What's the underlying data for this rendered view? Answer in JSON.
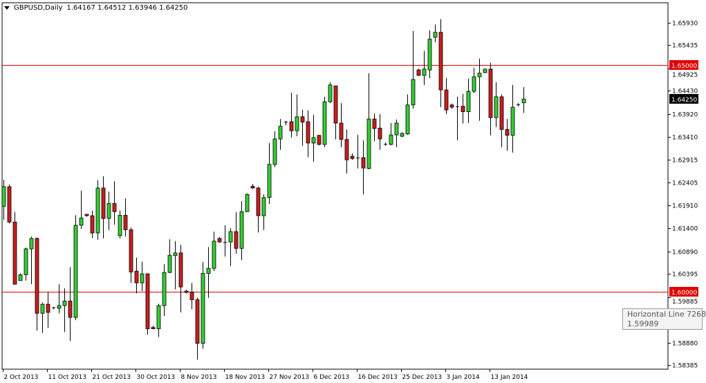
{
  "header": {
    "menu_icon": "triangle-down-icon",
    "symbol": "GBPUSD,Daily",
    "ohlc": "1.64167 1.64512 1.63946 1.64250"
  },
  "tooltip": {
    "title": "Horizontal Line 7268",
    "value": "1.59989"
  },
  "chart_data": {
    "type": "candlestick",
    "title": "GBPUSD,Daily",
    "ylim": [
      1.583,
      1.6637
    ],
    "grid": false,
    "colors": {
      "bull": "#32cd32",
      "bear": "#c81e1e",
      "outline": "#000000",
      "hline": "#e00000",
      "current_price_bg": "#000000"
    },
    "y_ticks": [
      "1.65930",
      "1.65435",
      "1.64925",
      "1.64430",
      "1.63920",
      "1.63410",
      "1.62915",
      "1.62405",
      "1.61910",
      "1.61400",
      "1.60890",
      "1.60395",
      "1.59885",
      "1.58880",
      "1.58385"
    ],
    "x_labels": [
      "2 Oct 2013",
      "11 Oct 2013",
      "21 Oct 2013",
      "30 Oct 2013",
      "8 Nov 2013",
      "18 Nov 2013",
      "27 Nov 2013",
      "6 Dec 2013",
      "16 Dec 2013",
      "25 Dec 2013",
      "3 Jan 2014",
      "13 Jan 2014"
    ],
    "horizontal_lines": [
      {
        "price": 1.65,
        "label": "1.65000"
      },
      {
        "price": 1.6,
        "label": "1.60000"
      }
    ],
    "current_price": {
      "price": 1.6425,
      "label": "1.64250"
    },
    "ohlc_fields": [
      "open",
      "high",
      "low",
      "close"
    ],
    "candles": [
      [
        1.6189,
        1.6247,
        1.6159,
        1.6232
      ],
      [
        1.6232,
        1.6237,
        1.6151,
        1.6154
      ],
      [
        1.6154,
        1.6176,
        1.6017,
        1.6017
      ],
      [
        1.6025,
        1.6041,
        1.6025,
        1.6038
      ],
      [
        1.6038,
        1.6098,
        1.6025,
        1.6095
      ],
      [
        1.6095,
        1.6122,
        1.6017,
        1.6118
      ],
      [
        1.6118,
        1.612,
        1.5915,
        1.5953
      ],
      [
        1.5953,
        1.5977,
        1.591,
        1.5973
      ],
      [
        1.5973,
        1.6,
        1.5921,
        1.5955
      ],
      [
        1.5965,
        1.5967,
        1.5962,
        1.5966
      ],
      [
        1.5964,
        1.6017,
        1.5953,
        1.597
      ],
      [
        1.597,
        1.6008,
        1.5912,
        1.598
      ],
      [
        1.598,
        1.6055,
        1.5892,
        1.5944
      ],
      [
        1.5944,
        1.6169,
        1.5938,
        1.6147
      ],
      [
        1.6147,
        1.6223,
        1.6139,
        1.6163
      ],
      [
        1.6171,
        1.6172,
        1.6166,
        1.6168
      ],
      [
        1.6168,
        1.6179,
        1.6119,
        1.613
      ],
      [
        1.613,
        1.6246,
        1.6115,
        1.6229
      ],
      [
        1.6229,
        1.6255,
        1.6118,
        1.6162
      ],
      [
        1.6162,
        1.6221,
        1.6136,
        1.6195
      ],
      [
        1.6195,
        1.6244,
        1.6148,
        1.6177
      ],
      [
        1.6124,
        1.6179,
        1.6118,
        1.6169
      ],
      [
        1.6169,
        1.6206,
        1.6122,
        1.6137
      ],
      [
        1.6137,
        1.6142,
        1.602,
        1.6044
      ],
      [
        1.6046,
        1.6076,
        1.5997,
        1.602
      ],
      [
        1.602,
        1.6067,
        1.6002,
        1.604
      ],
      [
        1.604,
        1.6041,
        1.5906,
        1.5919
      ],
      [
        1.5922,
        1.5926,
        1.5918,
        1.5919
      ],
      [
        1.5919,
        1.5974,
        1.5901,
        1.597
      ],
      [
        1.597,
        1.6061,
        1.5947,
        1.6043
      ],
      [
        1.6043,
        1.6116,
        1.6041,
        1.6081
      ],
      [
        1.608,
        1.6112,
        1.6006,
        1.6086
      ],
      [
        1.6086,
        1.6104,
        1.5955,
        1.6011
      ],
      [
        1.6002,
        1.6005,
        1.5997,
        1.5999
      ],
      [
        1.6,
        1.602,
        1.5962,
        1.5983
      ],
      [
        1.5983,
        1.5988,
        1.5851,
        1.5887
      ],
      [
        1.5887,
        1.6066,
        1.5875,
        1.6041
      ],
      [
        1.6041,
        1.6099,
        1.5987,
        1.6052
      ],
      [
        1.6052,
        1.6133,
        1.6046,
        1.6112
      ],
      [
        1.6118,
        1.6121,
        1.6109,
        1.611
      ],
      [
        1.611,
        1.6147,
        1.6078,
        1.611
      ],
      [
        1.611,
        1.614,
        1.6057,
        1.6133
      ],
      [
        1.6133,
        1.6176,
        1.6084,
        1.6096
      ],
      [
        1.6096,
        1.62,
        1.607,
        1.6177
      ],
      [
        1.6177,
        1.6217,
        1.6176,
        1.6215
      ],
      [
        1.6233,
        1.6238,
        1.6227,
        1.6229
      ],
      [
        1.6229,
        1.6232,
        1.6131,
        1.6168
      ],
      [
        1.6168,
        1.6215,
        1.6136,
        1.6208
      ],
      [
        1.6208,
        1.6328,
        1.6194,
        1.6281
      ],
      [
        1.6281,
        1.6354,
        1.6275,
        1.6337
      ],
      [
        1.6337,
        1.6381,
        1.6313,
        1.6365
      ],
      [
        1.6375,
        1.6377,
        1.6367,
        1.6374
      ],
      [
        1.6375,
        1.6439,
        1.634,
        1.6355
      ],
      [
        1.6355,
        1.6435,
        1.6343,
        1.6386
      ],
      [
        1.6386,
        1.6401,
        1.6322,
        1.6374
      ],
      [
        1.6375,
        1.64,
        1.6297,
        1.6328
      ],
      [
        1.6328,
        1.639,
        1.6287,
        1.634
      ],
      [
        1.6345,
        1.6346,
        1.6323,
        1.6325
      ],
      [
        1.6325,
        1.643,
        1.6319,
        1.6419
      ],
      [
        1.6419,
        1.6462,
        1.6416,
        1.6456
      ],
      [
        1.6454,
        1.6454,
        1.6336,
        1.6372
      ],
      [
        1.6372,
        1.6416,
        1.6319,
        1.6336
      ],
      [
        1.6336,
        1.6358,
        1.6261,
        1.6291
      ],
      [
        1.6299,
        1.6305,
        1.6291,
        1.6294
      ],
      [
        1.6296,
        1.6346,
        1.6272,
        1.6296
      ],
      [
        1.6296,
        1.6334,
        1.6215,
        1.6273
      ],
      [
        1.6272,
        1.6482,
        1.627,
        1.6381
      ],
      [
        1.6381,
        1.6393,
        1.6332,
        1.636
      ],
      [
        1.6361,
        1.6392,
        1.6313,
        1.6337
      ],
      [
        1.6326,
        1.6329,
        1.6322,
        1.6326
      ],
      [
        1.6325,
        1.6372,
        1.6323,
        1.6346
      ],
      [
        1.6346,
        1.638,
        1.6319,
        1.6372
      ],
      [
        1.6343,
        1.6352,
        1.6341,
        1.6349
      ],
      [
        1.6348,
        1.6435,
        1.6346,
        1.6412
      ],
      [
        1.6412,
        1.6575,
        1.6404,
        1.6468
      ],
      [
        1.6489,
        1.6492,
        1.6476,
        1.6477
      ],
      [
        1.6477,
        1.6531,
        1.6456,
        1.6491
      ],
      [
        1.6489,
        1.6576,
        1.6471,
        1.6557
      ],
      [
        1.6561,
        1.6589,
        1.655,
        1.6572
      ],
      [
        1.6572,
        1.6601,
        1.6407,
        1.6445
      ],
      [
        1.6445,
        1.6471,
        1.6392,
        1.6401
      ],
      [
        1.6412,
        1.6415,
        1.6403,
        1.6407
      ],
      [
        1.6409,
        1.643,
        1.6334,
        1.6409
      ],
      [
        1.6409,
        1.6436,
        1.6371,
        1.6397
      ],
      [
        1.6397,
        1.647,
        1.6372,
        1.6442
      ],
      [
        1.6442,
        1.6494,
        1.6438,
        1.6474
      ],
      [
        1.6474,
        1.6514,
        1.6377,
        1.6482
      ],
      [
        1.6483,
        1.6492,
        1.6482,
        1.6491
      ],
      [
        1.6491,
        1.6505,
        1.6345,
        1.6384
      ],
      [
        1.6384,
        1.6462,
        1.6363,
        1.643
      ],
      [
        1.643,
        1.6435,
        1.6319,
        1.6358
      ],
      [
        1.6358,
        1.6381,
        1.6311,
        1.6345
      ],
      [
        1.6345,
        1.6456,
        1.6307,
        1.6407
      ],
      [
        1.6413,
        1.6416,
        1.6409,
        1.6413
      ],
      [
        1.64167,
        1.64512,
        1.63946,
        1.6425
      ]
    ]
  }
}
